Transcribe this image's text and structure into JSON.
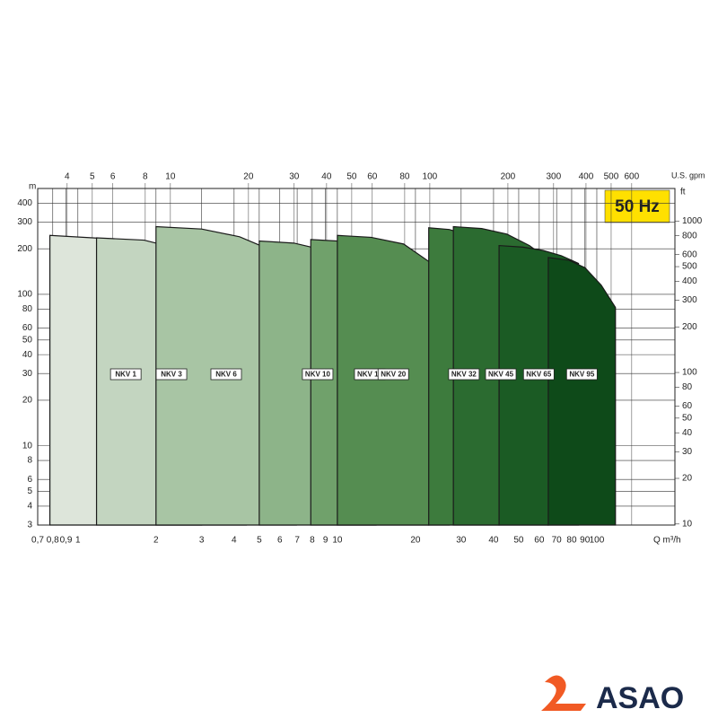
{
  "chart_data": {
    "type": "envelope",
    "badge": "50 Hz",
    "x_label": "Q m³/h",
    "y_label": "m",
    "x2_label": "U.S. gpm",
    "y2_label": "ft",
    "x_scale": "log",
    "y_scale": "log",
    "grid": true,
    "xlim": [
      0.7,
      200
    ],
    "ylim": [
      3,
      500
    ],
    "x2lim": [
      3.08,
      880.6
    ],
    "y2lim": [
      9.84,
      1640
    ],
    "xticks": [
      {
        "value": 0.7,
        "label": "0,7"
      },
      {
        "value": 0.8,
        "label": "0,8"
      },
      {
        "value": 0.9,
        "label": "0,9"
      },
      1,
      2,
      3,
      4,
      5,
      6,
      7,
      8,
      9,
      10,
      20,
      30,
      40,
      50,
      60,
      70,
      80,
      90,
      100
    ],
    "yticks": [
      3,
      4,
      5,
      6,
      8,
      10,
      20,
      30,
      40,
      50,
      60,
      80,
      100,
      200,
      300,
      400
    ],
    "x2ticks": [
      4,
      5,
      6,
      8,
      10,
      20,
      30,
      40,
      50,
      60,
      80,
      100,
      200,
      300,
      400,
      500,
      600
    ],
    "y2ticks": [
      10,
      20,
      30,
      40,
      50,
      60,
      80,
      100,
      200,
      300,
      400,
      500,
      600,
      800,
      1000
    ],
    "series": [
      {
        "name": "NKV 1",
        "color": "#dde5da",
        "x": [
          0.78,
          1.2,
          1.8,
          2.4,
          3.0
        ],
        "values": [
          245,
          235,
          200,
          130,
          81
        ]
      },
      {
        "name": "NKV 3",
        "color": "#c3d5c0",
        "x": [
          1.18,
          1.8,
          2.6,
          3.6,
          4.46
        ],
        "values": [
          236,
          228,
          195,
          140,
          101
        ]
      },
      {
        "name": "NKV 6",
        "color": "#a8c5a4",
        "x": [
          2.0,
          3.0,
          4.2,
          5.6,
          6.95
        ],
        "values": [
          280,
          270,
          240,
          195,
          150
        ]
      },
      {
        "name": "NKV 10",
        "color": "#8db489",
        "x": [
          5.0,
          6.8,
          9.0,
          11.5,
          14.1
        ],
        "values": [
          225,
          218,
          195,
          145,
          100
        ]
      },
      {
        "name": "NKV 15",
        "color": "#70a16b",
        "x": [
          7.9,
          10.5,
          14,
          18,
          22.5
        ],
        "values": [
          230,
          224,
          205,
          160,
          110
        ]
      },
      {
        "name": "NKV 20",
        "color": "#558d51",
        "x": [
          10,
          13.5,
          18,
          22.5,
          27
        ],
        "values": [
          245,
          238,
          215,
          165,
          110
        ]
      },
      {
        "name": "NKV 32",
        "color": "#3d7b3d",
        "x": [
          22.5,
          27,
          32,
          37,
          42
        ],
        "values": [
          275,
          268,
          245,
          200,
          150
        ]
      },
      {
        "name": "NKV 45",
        "color": "#2b6b30",
        "x": [
          28,
          36,
          45,
          55,
          65
        ],
        "values": [
          280,
          272,
          250,
          210,
          170
        ]
      },
      {
        "name": "NKV 65",
        "color": "#1b5b24",
        "x": [
          42,
          52,
          62,
          73,
          85
        ],
        "values": [
          210,
          205,
          195,
          180,
          160
        ]
      },
      {
        "name": "NKV 95",
        "color": "#0e4a19",
        "x": [
          65,
          78,
          90,
          104,
          118
        ],
        "values": [
          175,
          168,
          150,
          115,
          82
        ]
      }
    ]
  },
  "logo": {
    "text": "ASAO"
  }
}
